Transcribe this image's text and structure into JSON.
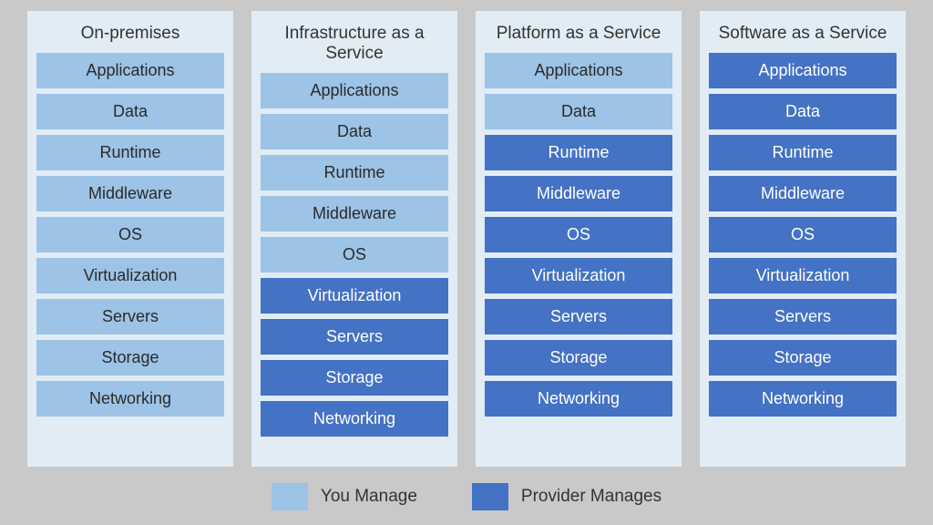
{
  "colors": {
    "page_bg": "#c9c9c9",
    "column_bg": "#e1ecf4",
    "you_manage": "#9dc3e6",
    "provider_manages": "#4472c4",
    "you_text": "#2a2a2a",
    "provider_text": "#ffffff"
  },
  "typography": {
    "font_family": "Segoe UI",
    "header_fontsize": 19,
    "layer_fontsize": 18,
    "legend_fontsize": 19
  },
  "layers": [
    "Applications",
    "Data",
    "Runtime",
    "Middleware",
    "OS",
    "Virtualization",
    "Servers",
    "Storage",
    "Networking"
  ],
  "columns": [
    {
      "title": "On-premises",
      "manage": [
        "you",
        "you",
        "you",
        "you",
        "you",
        "you",
        "you",
        "you",
        "you"
      ]
    },
    {
      "title": "Infrastructure as a Service",
      "manage": [
        "you",
        "you",
        "you",
        "you",
        "you",
        "provider",
        "provider",
        "provider",
        "provider"
      ]
    },
    {
      "title": "Platform as a Service",
      "manage": [
        "you",
        "you",
        "provider",
        "provider",
        "provider",
        "provider",
        "provider",
        "provider",
        "provider"
      ]
    },
    {
      "title": "Software as a Service",
      "manage": [
        "provider",
        "provider",
        "provider",
        "provider",
        "provider",
        "provider",
        "provider",
        "provider",
        "provider"
      ]
    }
  ],
  "legend": {
    "you": "You Manage",
    "provider": "Provider Manages"
  }
}
